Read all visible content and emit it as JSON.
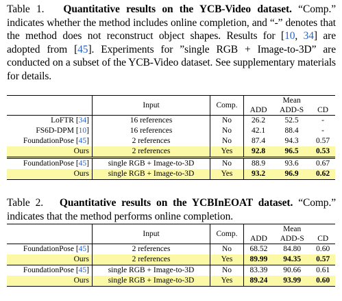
{
  "table1": {
    "caption_label": "Table 1.",
    "caption_title": "Quantitative results on the YCB-Video dataset.",
    "caption_parts": [
      "“Comp.” indicates whether the method includes online completion, and “-” denotes that the method does not reconstruct object shapes. Results for [",
      "10",
      ", ",
      "34",
      "] are adopted from [",
      "45",
      "]. Experiments for ”single RGB + Image-to-3D” are conducted on a subset of the YCB-Video dataset. See supplementary materials for details."
    ],
    "headers": {
      "input": "Input",
      "comp": "Comp.",
      "mean": "Mean",
      "add": "ADD",
      "adds": "ADD-S",
      "cd": "CD"
    },
    "rows": [
      {
        "method": "LoFTR",
        "cite": "34",
        "input": "16 references",
        "comp": "No",
        "add": "26.2",
        "adds": "52.5",
        "cd": "-"
      },
      {
        "method": "FS6D-DPM",
        "cite": "10",
        "input": "16 references",
        "comp": "No",
        "add": "42.1",
        "adds": "88.4",
        "cd": "-"
      },
      {
        "method": "FoundationPose",
        "cite": "45",
        "input": "2 references",
        "comp": "No",
        "add": "87.4",
        "adds": "94.3",
        "cd": "0.57"
      },
      {
        "method": "Ours",
        "cite": "",
        "input": "2 references",
        "comp": "Yes",
        "add": "92.8",
        "adds": "96.5",
        "cd": "0.53"
      },
      {
        "method": "FoundationPose",
        "cite": "45",
        "input": "single RGB + Image-to-3D",
        "comp": "No",
        "add": "88.9",
        "adds": "93.6",
        "cd": "0.67"
      },
      {
        "method": "Ours",
        "cite": "",
        "input": "single RGB + Image-to-3D",
        "comp": "Yes",
        "add": "93.2",
        "adds": "96.9",
        "cd": "0.62"
      }
    ]
  },
  "table2": {
    "caption_label": "Table 2.",
    "caption_title": "Quantitative results on the YCBInEOAT dataset.",
    "caption_text": "“Comp.” indicates that the method performs online completion.",
    "headers": {
      "input": "Input",
      "comp": "Comp.",
      "mean": "Mean",
      "add": "ADD",
      "adds": "ADD-S",
      "cd": "CD"
    },
    "rows": [
      {
        "method": "FoundationPose",
        "cite": "45",
        "input": "2 references",
        "comp": "No",
        "add": "68.52",
        "adds": "84.80",
        "cd": "0.60"
      },
      {
        "method": "Ours",
        "cite": "",
        "input": "2 references",
        "comp": "Yes",
        "add": "89.99",
        "adds": "94.35",
        "cd": "0.57"
      },
      {
        "method": "FoundationPose",
        "cite": "45",
        "input": "single RGB + Image-to-3D",
        "comp": "No",
        "add": "83.39",
        "adds": "90.66",
        "cd": "0.61"
      },
      {
        "method": "Ours",
        "cite": "",
        "input": "single RGB + Image-to-3D",
        "comp": "Yes",
        "add": "89.24",
        "adds": "93.99",
        "cd": "0.60"
      }
    ]
  },
  "colors": {
    "highlight": "#fbf8a6",
    "citation": "#2a62c7"
  }
}
